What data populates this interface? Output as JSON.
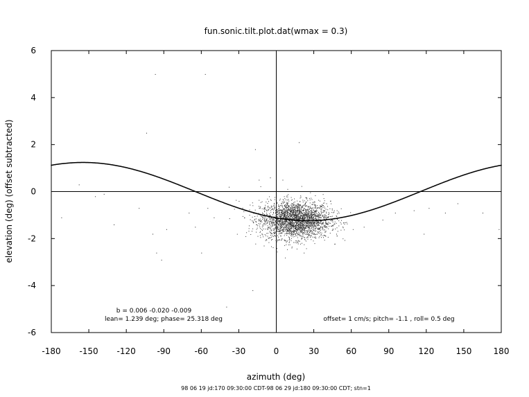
{
  "chart_data": {
    "type": "scatter",
    "title": "fun.sonic.tilt.plot.dat(wmax = 0.3)",
    "xlabel": "azimuth (deg)",
    "ylabel": "elevation (deg)  (offset subtracted)",
    "xlim": [
      -180,
      180
    ],
    "ylim": [
      -6,
      6
    ],
    "xticks": [
      "-180",
      "-150",
      "-120",
      "-90",
      "-60",
      "-30",
      "0",
      "30",
      "60",
      "90",
      "120",
      "150",
      "180"
    ],
    "yticks": [
      "6",
      "4",
      "2",
      "0",
      "-2",
      "-4",
      "-6"
    ],
    "grid": false,
    "zero_lines": true,
    "annotations": {
      "coeffs": "b =  0.006  -0.020  -0.009",
      "lean": "lean= 1.239 deg; phase= 25.318 deg",
      "offset": "offset= 1 cm/s; pitch= -1.1 , roll=  0.5 deg"
    },
    "footer": "98 06 19 jd:170 09:30:00 CDT-98 06 29 jd:180 09:30:00 CDT; stn=1",
    "fit_curve": {
      "name": "",
      "amplitude_deg": 1.239,
      "phase_deg": 25.318,
      "offset_deg": 0.0
    },
    "scatter_cluster": {
      "center_x": 15,
      "center_y": -1.2,
      "spread_x": 14,
      "spread_y": 0.4,
      "count": 2600
    },
    "outliers": [
      [
        -172,
        -1.1
      ],
      [
        -158,
        0.3
      ],
      [
        -145,
        -0.2
      ],
      [
        -138,
        -0.1
      ],
      [
        -130,
        -1.4
      ],
      [
        -110,
        -0.7
      ],
      [
        -104,
        2.5
      ],
      [
        -99,
        -1.8
      ],
      [
        -97,
        5.0
      ],
      [
        -96,
        -2.6
      ],
      [
        -92,
        -2.9
      ],
      [
        -88,
        -1.6
      ],
      [
        -70,
        -0.9
      ],
      [
        -65,
        -1.5
      ],
      [
        -60,
        -2.6
      ],
      [
        -57,
        5.0
      ],
      [
        -55,
        -0.7
      ],
      [
        -50,
        -1.1
      ],
      [
        -40,
        -4.9
      ],
      [
        -38,
        0.2
      ],
      [
        -30,
        -0.4
      ],
      [
        -25,
        -0.8
      ],
      [
        -19,
        -4.2
      ],
      [
        -17,
        1.8
      ],
      [
        -14,
        0.5
      ],
      [
        -10,
        -2.3
      ],
      [
        -5,
        0.6
      ],
      [
        5,
        0.5
      ],
      [
        18,
        2.1
      ],
      [
        22,
        -2.6
      ],
      [
        40,
        -0.5
      ],
      [
        48,
        -1.8
      ],
      [
        56,
        -1.3
      ],
      [
        70,
        -1.5
      ],
      [
        85,
        -1.2
      ],
      [
        95,
        -0.9
      ],
      [
        110,
        -0.8
      ],
      [
        118,
        -1.8
      ],
      [
        122,
        -0.7
      ],
      [
        135,
        -0.9
      ],
      [
        145,
        -0.5
      ],
      [
        165,
        -0.9
      ],
      [
        178,
        -1.6
      ]
    ]
  }
}
